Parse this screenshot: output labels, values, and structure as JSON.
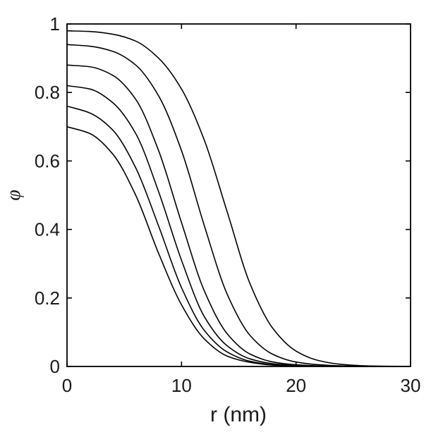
{
  "chart_data": {
    "type": "line",
    "xlabel": "r (nm)",
    "ylabel": "φ",
    "xlim": [
      0,
      30
    ],
    "ylim": [
      0,
      1
    ],
    "xticks": [
      0,
      10,
      20,
      30
    ],
    "yticks": [
      0,
      0.2,
      0.4,
      0.6,
      0.8,
      1
    ],
    "xtick_labels": [
      "0",
      "10",
      "20",
      "30"
    ],
    "ytick_labels": [
      "0",
      "0.2",
      "0.4",
      "0.6",
      "0.8",
      "1"
    ],
    "grid": false,
    "legend": "none",
    "line_color": "#000000",
    "x": [
      0,
      2,
      4,
      6,
      8,
      10,
      12,
      14,
      16,
      18,
      20,
      22,
      24,
      26,
      28,
      30
    ],
    "series": [
      {
        "values": [
          0.7,
          0.68,
          0.62,
          0.5,
          0.33,
          0.18,
          0.08,
          0.03,
          0.012,
          0.004,
          0.0015,
          0.0005,
          0.0002,
          0.0001,
          0.0,
          0.0
        ]
      },
      {
        "values": [
          0.76,
          0.74,
          0.69,
          0.58,
          0.41,
          0.23,
          0.105,
          0.042,
          0.015,
          0.005,
          0.002,
          0.0007,
          0.0003,
          0.0001,
          0.0,
          0.0
        ]
      },
      {
        "values": [
          0.82,
          0.81,
          0.77,
          0.68,
          0.51,
          0.31,
          0.145,
          0.06,
          0.022,
          0.008,
          0.003,
          0.001,
          0.0004,
          0.0001,
          0.0,
          0.0
        ]
      },
      {
        "values": [
          0.88,
          0.875,
          0.85,
          0.78,
          0.63,
          0.42,
          0.22,
          0.095,
          0.036,
          0.013,
          0.005,
          0.0018,
          0.0006,
          0.0002,
          0.0,
          0.0
        ]
      },
      {
        "values": [
          0.94,
          0.935,
          0.92,
          0.88,
          0.79,
          0.63,
          0.41,
          0.21,
          0.09,
          0.035,
          0.013,
          0.005,
          0.0018,
          0.0006,
          0.0002,
          0.0
        ]
      },
      {
        "values": [
          0.98,
          0.978,
          0.97,
          0.95,
          0.9,
          0.81,
          0.66,
          0.45,
          0.24,
          0.11,
          0.045,
          0.017,
          0.006,
          0.002,
          0.0007,
          0.0002
        ]
      }
    ]
  }
}
